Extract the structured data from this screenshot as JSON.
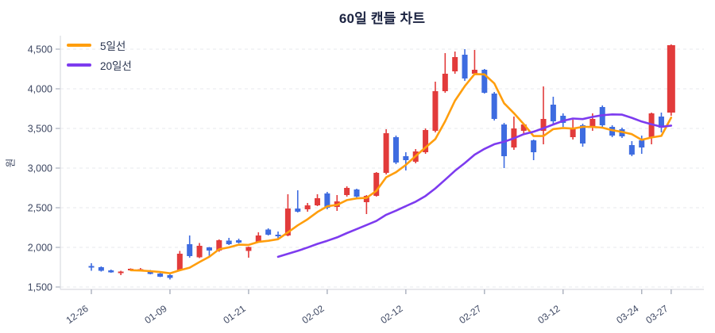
{
  "chart_data": {
    "type": "candlestick",
    "title": "60일 캔들 차트",
    "ylabel": "원",
    "legend_position": "top-left",
    "grid": "horizontal-dashed",
    "legend": [
      {
        "label": "5일선",
        "color": "#ff9e0d",
        "period": 5
      },
      {
        "label": "20일선",
        "color": "#7d3bef",
        "period": 20
      }
    ],
    "colors": {
      "up": "#e23b3b",
      "down": "#3e6ce0",
      "grid": "#e7e8ec",
      "axis": "#d9dbe1",
      "tick": "#aab0bd",
      "tick_text": "#3e4863",
      "title_text": "#1b2341"
    },
    "y_axis": {
      "min": 1500,
      "max": 4500,
      "ticks": [
        {
          "value": 1500,
          "label": "1,500"
        },
        {
          "value": 2000,
          "label": "2,000"
        },
        {
          "value": 2500,
          "label": "2,500"
        },
        {
          "value": 3000,
          "label": "3,000"
        },
        {
          "value": 3500,
          "label": "3,500"
        },
        {
          "value": 4000,
          "label": "4,000"
        },
        {
          "value": 4500,
          "label": "4,500"
        }
      ]
    },
    "x_axis": {
      "ticks": [
        {
          "index": 0,
          "label": "12-26"
        },
        {
          "index": 8,
          "label": "01-09"
        },
        {
          "index": 16,
          "label": "01-21"
        },
        {
          "index": 24,
          "label": "02-02"
        },
        {
          "index": 32,
          "label": "02-12"
        },
        {
          "index": 40,
          "label": "02-27"
        },
        {
          "index": 48,
          "label": "03-12"
        },
        {
          "index": 56,
          "label": "03-24"
        },
        {
          "index": 59,
          "label": "03-27"
        }
      ]
    },
    "candles_ohlc": [
      [
        1765,
        1800,
        1705,
        1745
      ],
      [
        1750,
        1760,
        1695,
        1705
      ],
      [
        1710,
        1720,
        1680,
        1685
      ],
      [
        1685,
        1705,
        1650,
        1695
      ],
      [
        1715,
        1735,
        1705,
        1730
      ],
      [
        1720,
        1740,
        1700,
        1725
      ],
      [
        1705,
        1715,
        1660,
        1665
      ],
      [
        1670,
        1680,
        1625,
        1630
      ],
      [
        1650,
        1660,
        1595,
        1615
      ],
      [
        1710,
        1955,
        1700,
        1920
      ],
      [
        2040,
        2150,
        1870,
        1890
      ],
      [
        1875,
        2055,
        1865,
        2020
      ],
      [
        2000,
        2005,
        1890,
        1960
      ],
      [
        1960,
        2100,
        1945,
        2090
      ],
      [
        2085,
        2120,
        2030,
        2040
      ],
      [
        2090,
        2110,
        2050,
        2060
      ],
      [
        1955,
        2010,
        1870,
        2005
      ],
      [
        2070,
        2190,
        2060,
        2150
      ],
      [
        2225,
        2240,
        2150,
        2160
      ],
      [
        2160,
        2200,
        2105,
        2140
      ],
      [
        2150,
        2670,
        2140,
        2490
      ],
      [
        2490,
        2720,
        2440,
        2450
      ],
      [
        2480,
        2560,
        2450,
        2530
      ],
      [
        2530,
        2670,
        2520,
        2620
      ],
      [
        2680,
        2700,
        2480,
        2500
      ],
      [
        2510,
        2660,
        2460,
        2580
      ],
      [
        2660,
        2770,
        2640,
        2750
      ],
      [
        2730,
        2740,
        2620,
        2640
      ],
      [
        2570,
        2660,
        2420,
        2650
      ],
      [
        2650,
        2950,
        2640,
        2940
      ],
      [
        2940,
        3490,
        2920,
        3440
      ],
      [
        3390,
        3410,
        3050,
        3070
      ],
      [
        3150,
        3200,
        2970,
        3100
      ],
      [
        3080,
        3240,
        3060,
        3210
      ],
      [
        3200,
        3500,
        3180,
        3480
      ],
      [
        3470,
        4090,
        3450,
        3970
      ],
      [
        3970,
        4450,
        3950,
        4190
      ],
      [
        4220,
        4470,
        4190,
        4400
      ],
      [
        4430,
        4500,
        4100,
        4130
      ],
      [
        4190,
        4490,
        4180,
        4240
      ],
      [
        4240,
        4250,
        3940,
        3950
      ],
      [
        3940,
        3960,
        3600,
        3620
      ],
      [
        3550,
        3570,
        3000,
        3150
      ],
      [
        3260,
        3650,
        3230,
        3500
      ],
      [
        3470,
        3560,
        3420,
        3550
      ],
      [
        3350,
        3360,
        3100,
        3200
      ],
      [
        3470,
        4030,
        3300,
        3620
      ],
      [
        3800,
        3900,
        3560,
        3590
      ],
      [
        3660,
        3690,
        3520,
        3570
      ],
      [
        3390,
        3610,
        3360,
        3510
      ],
      [
        3540,
        3560,
        3270,
        3310
      ],
      [
        3510,
        3690,
        3470,
        3620
      ],
      [
        3770,
        3790,
        3520,
        3540
      ],
      [
        3520,
        3540,
        3390,
        3410
      ],
      [
        3490,
        3510,
        3380,
        3400
      ],
      [
        3290,
        3340,
        3150,
        3170
      ],
      [
        3350,
        3410,
        3180,
        3260
      ],
      [
        3390,
        3700,
        3300,
        3690
      ],
      [
        3650,
        3700,
        3450,
        3510
      ],
      [
        3700,
        4560,
        3660,
        4550
      ]
    ]
  }
}
